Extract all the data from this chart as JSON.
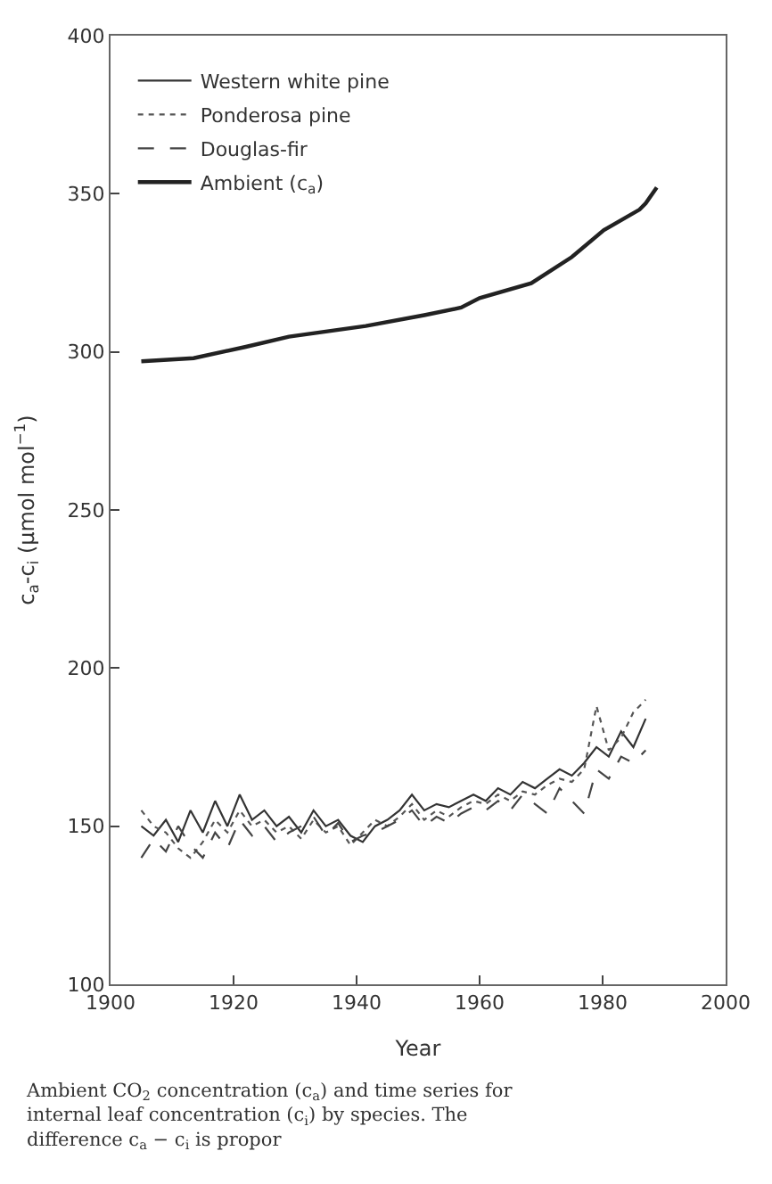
{
  "chart_data": {
    "type": "line",
    "xlabel": "Year",
    "ylabel": "c$_{a}$-c$_{i}$ (μmol mol$^{−1}$)",
    "annotations": [
      "Ambient CO$_{2}$ concentration (c$_{a}$) and time series for internal leaf concentration (c$_{i}$) by species. The difference c$_{a}$ − c$_{i}$ is propor"
    ],
    "xlim": [
      1900,
      2000
    ],
    "xticks": [
      1900,
      1920,
      1940,
      1960,
      1980,
      2000
    ],
    "ylim": [
      100,
      400
    ],
    "yticks": [
      100,
      150,
      200,
      250,
      300,
      350,
      400
    ],
    "legend": "top left",
    "series": [
      {
        "name": "Western white pine",
        "color": "#333333",
        "line_style": "solid",
        "x": [
          1905,
          1907,
          1909,
          1911,
          1913,
          1915,
          1917,
          1919,
          1921,
          1923,
          1925,
          1927,
          1929,
          1931,
          1933,
          1935,
          1937,
          1939,
          1941,
          1943,
          1945,
          1947,
          1949,
          1951,
          1953,
          1955,
          1957,
          1959,
          1961,
          1963,
          1965,
          1967,
          1969,
          1971,
          1973,
          1975,
          1977,
          1979,
          1981,
          1983,
          1985,
          1987
        ],
        "values": [
          150,
          147,
          152,
          145,
          155,
          148,
          158,
          150,
          160,
          152,
          155,
          150,
          153,
          148,
          155,
          150,
          152,
          147,
          145,
          150,
          152,
          155,
          160,
          155,
          157,
          156,
          158,
          160,
          158,
          162,
          160,
          164,
          162,
          165,
          168,
          166,
          170,
          175,
          172,
          180,
          175,
          184
        ]
      },
      {
        "name": "Ponderosa pine",
        "color": "#555555",
        "line_style": "dotted",
        "x": [
          1905,
          1907,
          1909,
          1911,
          1913,
          1915,
          1917,
          1919,
          1921,
          1923,
          1925,
          1927,
          1929,
          1931,
          1933,
          1935,
          1937,
          1939,
          1941,
          1943,
          1945,
          1947,
          1949,
          1951,
          1953,
          1955,
          1957,
          1959,
          1961,
          1963,
          1965,
          1967,
          1969,
          1971,
          1973,
          1975,
          1977,
          1979,
          1981,
          1983,
          1985,
          1987
        ],
        "values": [
          155,
          150,
          148,
          143,
          140,
          145,
          152,
          148,
          155,
          150,
          152,
          148,
          150,
          146,
          152,
          148,
          150,
          144,
          148,
          152,
          150,
          153,
          157,
          152,
          155,
          153,
          156,
          158,
          157,
          160,
          158,
          161,
          160,
          163,
          165,
          164,
          168,
          188,
          174,
          178,
          186,
          190
        ]
      },
      {
        "name": "Douglas-fir",
        "color": "#444444",
        "line_style": "dashed",
        "x": [
          1905,
          1907,
          1909,
          1911,
          1913,
          1915,
          1917,
          1919,
          1921,
          1923,
          1925,
          1927,
          1929,
          1931,
          1933,
          1935,
          1937,
          1939,
          1941,
          1943,
          1945,
          1947,
          1949,
          1951,
          1953,
          1955,
          1957,
          1959,
          1961,
          1963,
          1965,
          1967,
          1969,
          1971,
          1973,
          1975,
          1977,
          1979,
          1981,
          1983,
          1985,
          1987
        ],
        "values": [
          140,
          146,
          142,
          150,
          144,
          140,
          148,
          143,
          152,
          147,
          150,
          145,
          148,
          150,
          153,
          147,
          151,
          145,
          147,
          148,
          150,
          152,
          155,
          150,
          153,
          151,
          154,
          156,
          155,
          158,
          155,
          160,
          157,
          154,
          162,
          158,
          154,
          168,
          165,
          172,
          170,
          174
        ]
      },
      {
        "name": "Ambient (c$_{a}$)",
        "color": "#222222",
        "line_style": "solid",
        "x": [
          1905,
          1913.5,
          1922,
          1929,
          1941.5,
          1951,
          1957,
          1960,
          1968.4,
          1975,
          1980.2,
          1986,
          1987,
          1988.8
        ],
        "values": [
          297,
          298,
          301.6,
          304.8,
          308.2,
          311.6,
          314,
          317,
          321.7,
          330,
          338.5,
          345,
          347,
          352
        ]
      }
    ]
  }
}
